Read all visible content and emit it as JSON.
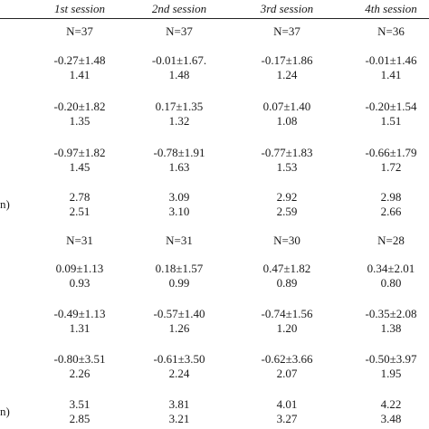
{
  "headers": [
    "1st session",
    "2nd session",
    "3rd session",
    "4th session"
  ],
  "group1": {
    "n": [
      "N=37",
      "N=37",
      "N=37",
      "N=36"
    ],
    "rows": [
      {
        "label": "",
        "cells": [
          [
            "-0.27±1.48",
            "1.41"
          ],
          [
            "-0.01±1.67.",
            "1.48"
          ],
          [
            "-0.17±1.86",
            "1.24"
          ],
          [
            "-0.01±1.46",
            "1.41"
          ]
        ]
      },
      {
        "label": "",
        "cells": [
          [
            "-0.20±1.82",
            "1.35"
          ],
          [
            "0.17±1.35",
            "1.32"
          ],
          [
            "0.07±1.40",
            "1.08"
          ],
          [
            "-0.20±1.54",
            "1.51"
          ]
        ]
      },
      {
        "label": "",
        "cells": [
          [
            "-0.97±1.82",
            "1.45"
          ],
          [
            "-0.78±1.91",
            "1.63"
          ],
          [
            "-0.77±1.83",
            "1.53"
          ],
          [
            "-0.66±1.79",
            "1.72"
          ]
        ]
      },
      {
        "label": "n)",
        "cells": [
          [
            "2.78",
            "2.51"
          ],
          [
            "3.09",
            "3.10"
          ],
          [
            "2.92",
            "2.59"
          ],
          [
            "2.98",
            "2.66"
          ]
        ]
      }
    ]
  },
  "group2": {
    "n": [
      "N=31",
      "N=31",
      "N=30",
      "N=28"
    ],
    "rows": [
      {
        "label": "",
        "cells": [
          [
            "0.09±1.13",
            "0.93"
          ],
          [
            "0.18±1.57",
            "0.99"
          ],
          [
            "0.47±1.82",
            "0.89"
          ],
          [
            "0.34±2.01",
            "0.80"
          ]
        ]
      },
      {
        "label": "",
        "cells": [
          [
            "-0.49±1.13",
            "1.31"
          ],
          [
            "-0.57±1.40",
            "1.26"
          ],
          [
            "-0.74±1.56",
            "1.20"
          ],
          [
            "-0.35±2.08",
            "1.38"
          ]
        ]
      },
      {
        "label": "",
        "cells": [
          [
            "-0.80±3.51",
            "2.26"
          ],
          [
            "-0.61±3.50",
            "2.24"
          ],
          [
            "-0.62±3.66",
            "2.07"
          ],
          [
            "-0.50±3.97",
            "1.95"
          ]
        ]
      },
      {
        "label": "n)",
        "cells": [
          [
            "3.51",
            "2.85"
          ],
          [
            "3.81",
            "3.21"
          ],
          [
            "4.01",
            "3.27"
          ],
          [
            "4.22",
            "3.48"
          ]
        ]
      }
    ]
  }
}
